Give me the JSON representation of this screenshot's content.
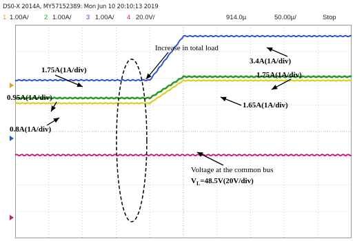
{
  "header": {
    "device": "DS0-X 2014A, MY57152389: Mon Jun 10 20:10:13 2019",
    "channels": [
      {
        "num": "1",
        "scale": "1.00A/",
        "color": "#e0a020"
      },
      {
        "num": "2",
        "scale": "1.00A/",
        "color": "#2a9a2a"
      },
      {
        "num": "3",
        "scale": "1.00A/",
        "color": "#2a54d8"
      },
      {
        "num": "4",
        "scale": "20.0V/",
        "color": "#d01878"
      }
    ],
    "time_position": "914.0µ",
    "time_scale": "50.00µ/",
    "mode": "Stop"
  },
  "chart_data": {
    "type": "line",
    "title": "",
    "xlabel": "",
    "ylabel": "",
    "grid": true,
    "x": [
      0,
      10,
      20,
      30,
      40,
      50,
      60,
      70,
      80,
      90,
      100
    ],
    "series": [
      {
        "color": "#2a54d8",
        "values": [
          1.75,
          1.75,
          1.75,
          1.75,
          1.75,
          3.4,
          3.4,
          3.4,
          3.4,
          3.4,
          3.4
        ]
      },
      {
        "color": "#2a9a2a",
        "values": [
          0.95,
          0.95,
          0.95,
          0.95,
          0.95,
          1.75,
          1.75,
          1.75,
          1.75,
          1.75,
          1.75
        ]
      },
      {
        "color": "#d8d020",
        "values": [
          0.8,
          0.8,
          0.8,
          0.8,
          0.8,
          1.65,
          1.65,
          1.65,
          1.65,
          1.65,
          1.65
        ]
      },
      {
        "color": "#d01878",
        "values": [
          48.5,
          48.5,
          48.5,
          48.5,
          48.5,
          48.5,
          48.5,
          48.5,
          48.5,
          48.5,
          48.5
        ]
      }
    ],
    "annotations": [
      {
        "text": "Increase in total load"
      },
      {
        "text": "1.75A(1A/div)"
      },
      {
        "text": "3.4A(1A/div)"
      },
      {
        "text": "1.75A(1A/div)"
      },
      {
        "text": "0.95A(1A/div)"
      },
      {
        "text": "1.65A(1A/div)"
      },
      {
        "text": "0.8A(1A/div)"
      },
      {
        "text": "Voltage at the common bus"
      },
      {
        "text": "V",
        "sub": "L",
        "rest": "=48.5V(20V/div)"
      }
    ]
  }
}
